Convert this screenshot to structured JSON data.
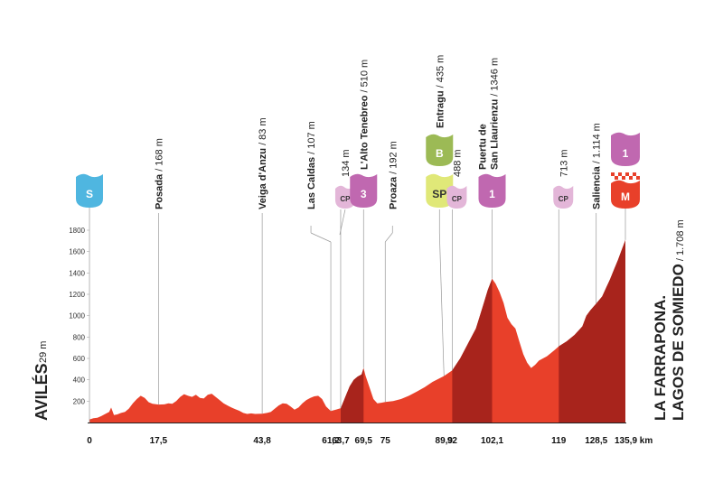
{
  "chart_data": {
    "type": "area",
    "xlabel": "",
    "ylabel": "",
    "x_unit": "km",
    "elevation_unit": "m",
    "xlim": [
      0,
      135.9
    ],
    "ylim": [
      0,
      1900
    ],
    "y_ticks": [
      0,
      200,
      400,
      600,
      800,
      1000,
      1200,
      1400,
      1600,
      1800
    ],
    "x_ticks": [
      {
        "value": 0,
        "label": "0"
      },
      {
        "value": 17.5,
        "label": "17,5"
      },
      {
        "value": 43.8,
        "label": "43,8"
      },
      {
        "value": 61.2,
        "label": "61,2"
      },
      {
        "value": 63.7,
        "label": "63,7"
      },
      {
        "value": 69.5,
        "label": "69,5"
      },
      {
        "value": 75,
        "label": "75"
      },
      {
        "value": 89.9,
        "label": "89,9"
      },
      {
        "value": 92,
        "label": "92"
      },
      {
        "value": 102.1,
        "label": "102,1"
      },
      {
        "value": 119,
        "label": "119"
      },
      {
        "value": 128.5,
        "label": "128,5"
      },
      {
        "value": 135.9,
        "label": "135,9 km"
      }
    ],
    "profile": [
      {
        "x": 0,
        "y": 29
      },
      {
        "x": 1,
        "y": 40
      },
      {
        "x": 2,
        "y": 45
      },
      {
        "x": 3,
        "y": 60
      },
      {
        "x": 4,
        "y": 80
      },
      {
        "x": 5,
        "y": 100
      },
      {
        "x": 5.5,
        "y": 140
      },
      {
        "x": 6.2,
        "y": 70
      },
      {
        "x": 7,
        "y": 75
      },
      {
        "x": 8,
        "y": 90
      },
      {
        "x": 9,
        "y": 100
      },
      {
        "x": 10,
        "y": 130
      },
      {
        "x": 11,
        "y": 180
      },
      {
        "x": 12,
        "y": 220
      },
      {
        "x": 13,
        "y": 250
      },
      {
        "x": 14,
        "y": 230
      },
      {
        "x": 15,
        "y": 190
      },
      {
        "x": 16,
        "y": 175
      },
      {
        "x": 17.5,
        "y": 168
      },
      {
        "x": 19,
        "y": 170
      },
      {
        "x": 20,
        "y": 180
      },
      {
        "x": 21,
        "y": 175
      },
      {
        "x": 22,
        "y": 200
      },
      {
        "x": 23,
        "y": 240
      },
      {
        "x": 24,
        "y": 265
      },
      {
        "x": 25,
        "y": 250
      },
      {
        "x": 26,
        "y": 240
      },
      {
        "x": 27,
        "y": 260
      },
      {
        "x": 28,
        "y": 230
      },
      {
        "x": 29,
        "y": 225
      },
      {
        "x": 30,
        "y": 260
      },
      {
        "x": 31,
        "y": 270
      },
      {
        "x": 32,
        "y": 240
      },
      {
        "x": 33,
        "y": 210
      },
      {
        "x": 34,
        "y": 180
      },
      {
        "x": 35,
        "y": 160
      },
      {
        "x": 36,
        "y": 140
      },
      {
        "x": 37,
        "y": 125
      },
      {
        "x": 38,
        "y": 110
      },
      {
        "x": 39,
        "y": 90
      },
      {
        "x": 40,
        "y": 80
      },
      {
        "x": 41,
        "y": 85
      },
      {
        "x": 42,
        "y": 80
      },
      {
        "x": 43.8,
        "y": 83
      },
      {
        "x": 45,
        "y": 90
      },
      {
        "x": 46,
        "y": 100
      },
      {
        "x": 47,
        "y": 130
      },
      {
        "x": 48,
        "y": 160
      },
      {
        "x": 49,
        "y": 180
      },
      {
        "x": 50,
        "y": 175
      },
      {
        "x": 51,
        "y": 150
      },
      {
        "x": 52,
        "y": 120
      },
      {
        "x": 53,
        "y": 140
      },
      {
        "x": 54,
        "y": 180
      },
      {
        "x": 55,
        "y": 210
      },
      {
        "x": 56,
        "y": 230
      },
      {
        "x": 57,
        "y": 245
      },
      {
        "x": 58,
        "y": 250
      },
      {
        "x": 59,
        "y": 220
      },
      {
        "x": 60,
        "y": 150
      },
      {
        "x": 61.2,
        "y": 107
      },
      {
        "x": 62.5,
        "y": 120
      },
      {
        "x": 63.7,
        "y": 134
      },
      {
        "x": 65,
        "y": 250
      },
      {
        "x": 66,
        "y": 340
      },
      {
        "x": 67,
        "y": 400
      },
      {
        "x": 68,
        "y": 430
      },
      {
        "x": 69,
        "y": 450
      },
      {
        "x": 69.5,
        "y": 510
      },
      {
        "x": 70,
        "y": 440
      },
      {
        "x": 71,
        "y": 330
      },
      {
        "x": 72,
        "y": 220
      },
      {
        "x": 73,
        "y": 180
      },
      {
        "x": 74,
        "y": 185
      },
      {
        "x": 75,
        "y": 192
      },
      {
        "x": 77,
        "y": 200
      },
      {
        "x": 79,
        "y": 220
      },
      {
        "x": 81,
        "y": 250
      },
      {
        "x": 83,
        "y": 290
      },
      {
        "x": 85,
        "y": 330
      },
      {
        "x": 87,
        "y": 380
      },
      {
        "x": 89.9,
        "y": 435
      },
      {
        "x": 92,
        "y": 488
      },
      {
        "x": 94,
        "y": 600
      },
      {
        "x": 96,
        "y": 740
      },
      {
        "x": 98,
        "y": 880
      },
      {
        "x": 99,
        "y": 1000
      },
      {
        "x": 100,
        "y": 1120
      },
      {
        "x": 101,
        "y": 1240
      },
      {
        "x": 102.1,
        "y": 1346
      },
      {
        "x": 103,
        "y": 1300
      },
      {
        "x": 104,
        "y": 1220
      },
      {
        "x": 105,
        "y": 1120
      },
      {
        "x": 106,
        "y": 980
      },
      {
        "x": 107,
        "y": 920
      },
      {
        "x": 108,
        "y": 880
      },
      {
        "x": 109,
        "y": 760
      },
      {
        "x": 110,
        "y": 640
      },
      {
        "x": 111,
        "y": 560
      },
      {
        "x": 112,
        "y": 510
      },
      {
        "x": 113,
        "y": 540
      },
      {
        "x": 114,
        "y": 580
      },
      {
        "x": 115,
        "y": 600
      },
      {
        "x": 116,
        "y": 620
      },
      {
        "x": 117,
        "y": 650
      },
      {
        "x": 118,
        "y": 680
      },
      {
        "x": 119,
        "y": 713
      },
      {
        "x": 121,
        "y": 760
      },
      {
        "x": 123,
        "y": 820
      },
      {
        "x": 125,
        "y": 900
      },
      {
        "x": 126,
        "y": 1000
      },
      {
        "x": 127,
        "y": 1050
      },
      {
        "x": 128.5,
        "y": 1114
      },
      {
        "x": 130,
        "y": 1180
      },
      {
        "x": 131,
        "y": 1260
      },
      {
        "x": 132,
        "y": 1340
      },
      {
        "x": 133,
        "y": 1430
      },
      {
        "x": 134,
        "y": 1520
      },
      {
        "x": 135,
        "y": 1620
      },
      {
        "x": 135.9,
        "y": 1708
      }
    ],
    "climbs": [
      {
        "from": 63.7,
        "to": 69.5
      },
      {
        "from": 92,
        "to": 102.1
      },
      {
        "from": 119,
        "to": 135.9
      }
    ],
    "start": {
      "km": 0,
      "badge": "S",
      "name": "AVILÉS",
      "elevation": "29 m"
    },
    "finish": {
      "km": 135.9,
      "badge": "M",
      "category": "1",
      "line1": "LA FARRAPONA.",
      "line2": "LAGOS DE SOMIEDO",
      "elevation": "1.708 m"
    },
    "waypoints": [
      {
        "km": 17.5,
        "name": "Posada",
        "elevation": "168 m",
        "badge": null
      },
      {
        "km": 43.8,
        "name": "Veiga d'Anzu",
        "elevation": "83 m",
        "badge": null
      },
      {
        "km": 61.2,
        "name": "Las Caldas",
        "elevation": "107 m",
        "badge": null
      },
      {
        "km": 63.7,
        "name": "",
        "elevation": "134 m",
        "badge": "CP"
      },
      {
        "km": 69.5,
        "name": "L'Alto Tenebreo",
        "elevation": "510 m",
        "badge": "3"
      },
      {
        "km": 75,
        "name": "Proaza",
        "elevation": "192 m",
        "badge": null
      },
      {
        "km": 89.9,
        "name": "Entragu",
        "elevation": "435 m",
        "badge": "SP",
        "bonus": "B"
      },
      {
        "km": 92,
        "name": "",
        "elevation": "488 m",
        "badge": "CP"
      },
      {
        "km": 102.1,
        "name": "Puertu de\nSan Llaurienzu",
        "elevation": "1346 m",
        "badge": "1"
      },
      {
        "km": 119,
        "name": "",
        "elevation": "713 m",
        "badge": "CP"
      },
      {
        "km": 128.5,
        "name": "Saliencia",
        "elevation": "1.114 m",
        "badge": null
      }
    ],
    "colors": {
      "flat": "#E8402A",
      "climb": "#A8241C",
      "start_badge": "#4FB6E0",
      "mountain_badge": "#C068B0",
      "cp_badge": "#E3B6D8",
      "sprint_badge": "#E0E878",
      "bonus_badge": "#9CBA55",
      "finish_badge": "#E8402A",
      "guide": "#999999"
    }
  }
}
